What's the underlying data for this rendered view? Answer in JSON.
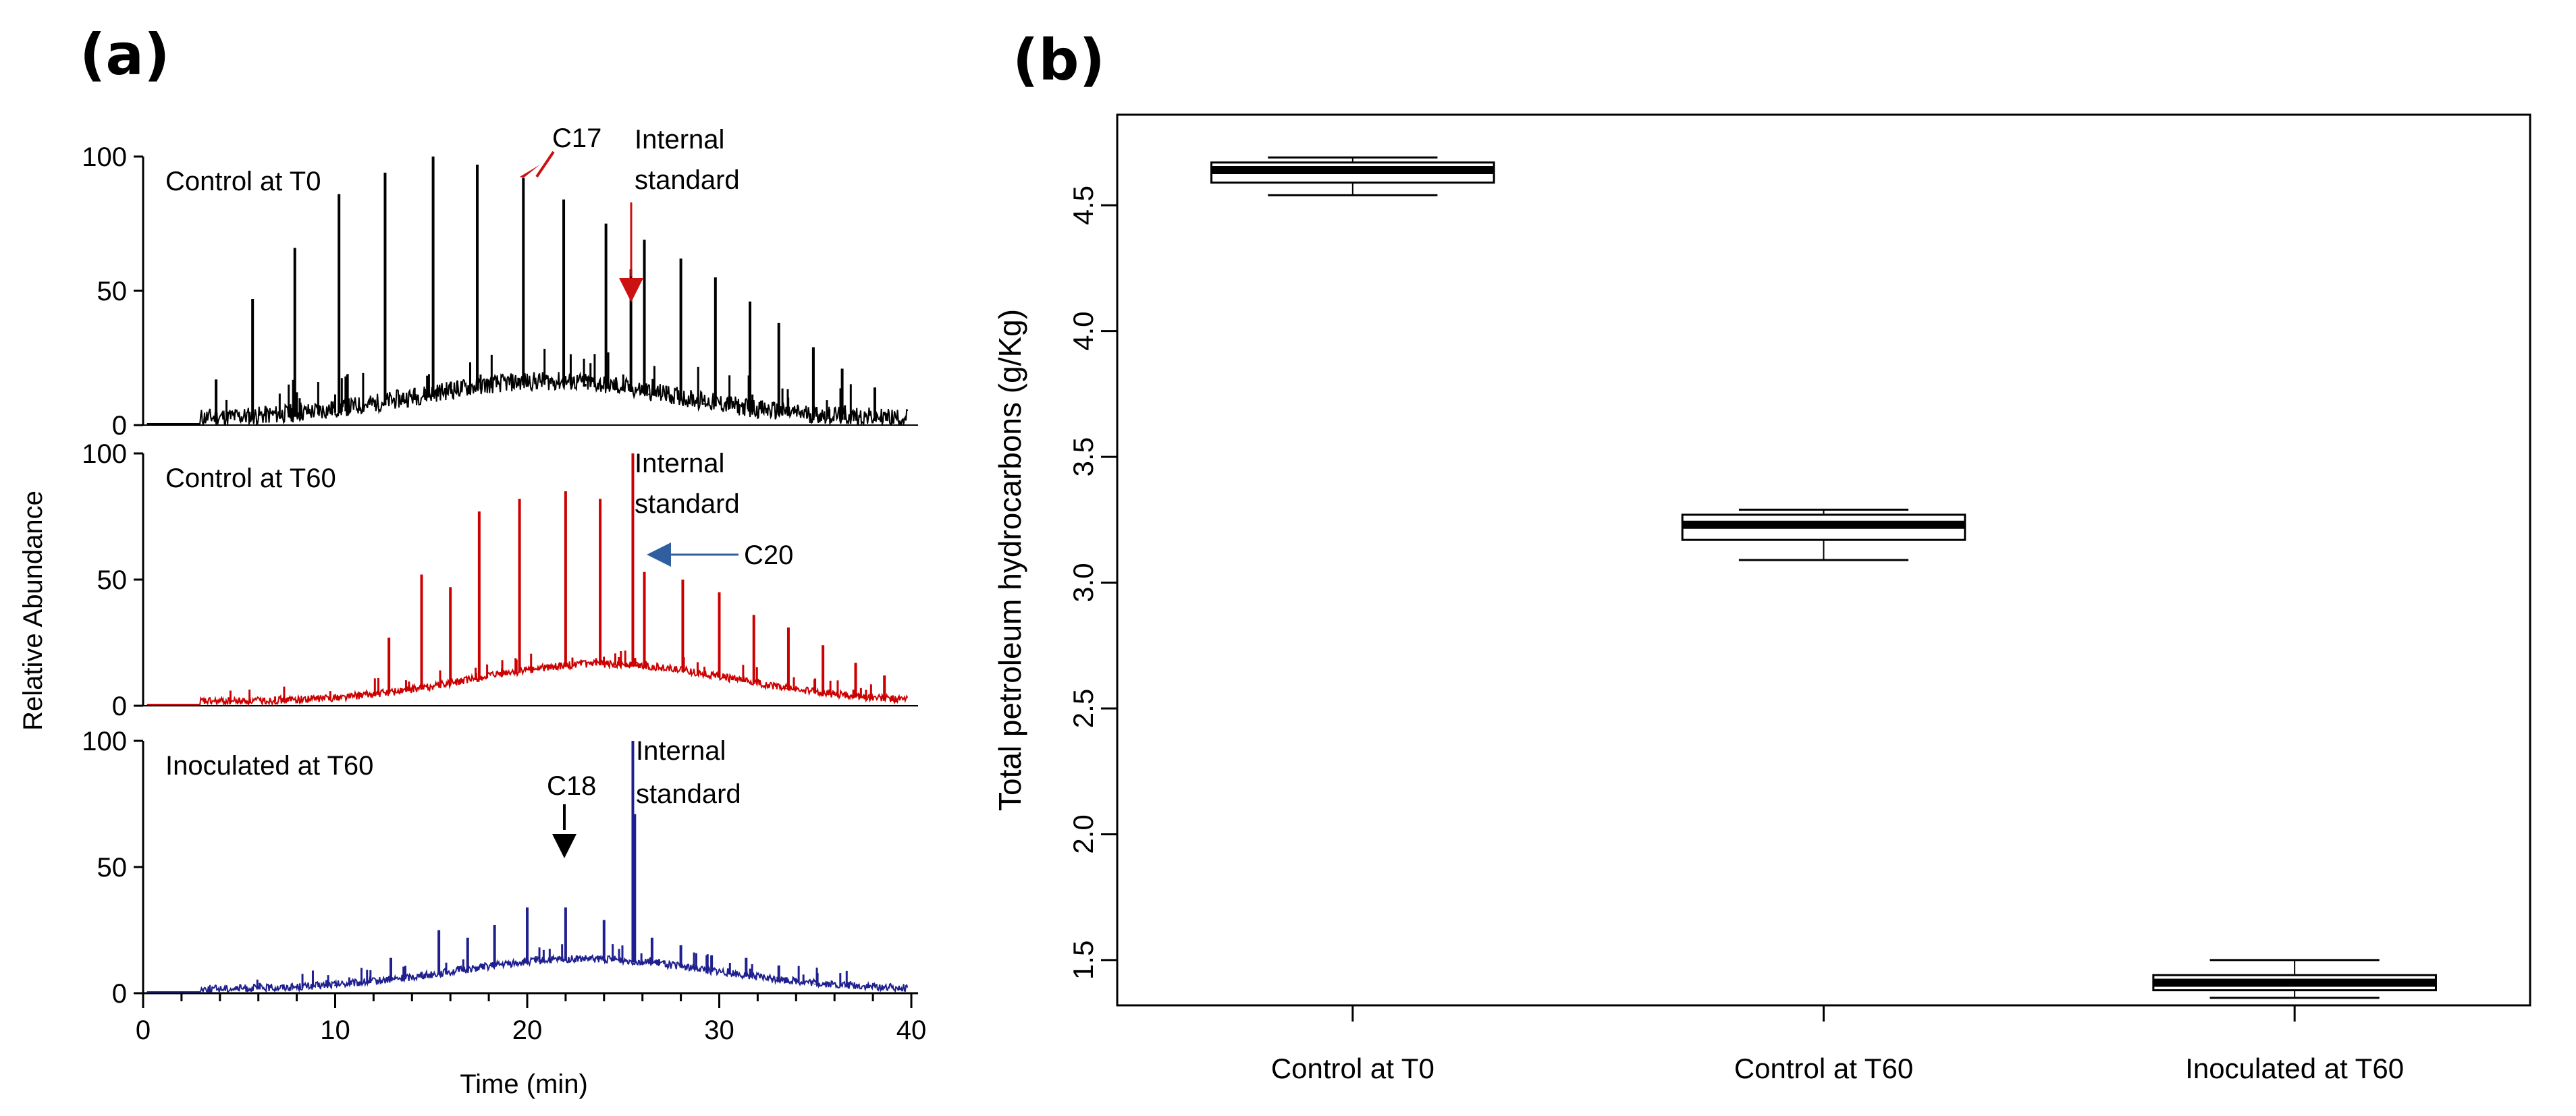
{
  "panels": {
    "a_label": "(a)",
    "b_label": "(b)"
  },
  "chart_data": [
    {
      "type": "line",
      "panel": "(a)",
      "xlabel": "Time (min)",
      "ylabel": "Relative Abundance",
      "x_ticks": [
        "0",
        "10",
        "20",
        "30",
        "40"
      ],
      "y_ticks": [
        "0",
        "50",
        "100"
      ],
      "xlim": [
        0,
        40
      ],
      "ylim": [
        0,
        100
      ],
      "series": [
        {
          "name": "Control at T0",
          "color": "#000000",
          "baseline_start": 3,
          "baseline_peak_time": 21,
          "baseline_peak_height": 14,
          "peaks": [
            [
              3.8,
              17
            ],
            [
              5.7,
              47
            ],
            [
              7.9,
              66
            ],
            [
              10.2,
              86
            ],
            [
              12.6,
              94
            ],
            [
              15.1,
              100
            ],
            [
              17.4,
              97
            ],
            [
              19.8,
              92
            ],
            [
              21.9,
              84
            ],
            [
              24.1,
              75
            ],
            [
              25.4,
              58
            ],
            [
              26.1,
              69
            ],
            [
              28.0,
              62
            ],
            [
              29.8,
              55
            ],
            [
              31.6,
              46
            ],
            [
              33.1,
              38
            ],
            [
              34.9,
              29
            ],
            [
              36.4,
              21
            ],
            [
              38.1,
              14
            ]
          ],
          "annotations": [
            {
              "text": "C17",
              "x": 19.8
            },
            {
              "text_line1": "Internal",
              "text_line2": "standard",
              "x": 25.4
            }
          ]
        },
        {
          "name": "Control at T60",
          "color": "#cc0000",
          "baseline_start": 3,
          "baseline_peak_time": 24,
          "baseline_peak_height": 15,
          "peaks": [
            [
              12.8,
              27
            ],
            [
              14.5,
              52
            ],
            [
              16.0,
              47
            ],
            [
              17.5,
              77
            ],
            [
              19.6,
              82
            ],
            [
              22.0,
              85
            ],
            [
              23.8,
              82
            ],
            [
              25.5,
              100
            ],
            [
              26.1,
              53
            ],
            [
              28.1,
              50
            ],
            [
              30.0,
              45
            ],
            [
              31.8,
              36
            ],
            [
              33.6,
              31
            ],
            [
              35.4,
              24
            ],
            [
              37.1,
              17
            ],
            [
              38.6,
              12
            ]
          ],
          "annotations": [
            {
              "text_line1": "Internal",
              "text_line2": "standard",
              "x": 25.5
            },
            {
              "text": "C20",
              "x": 26.1
            }
          ]
        },
        {
          "name": "Inoculated at T60",
          "color": "#1f1f8f",
          "baseline_start": 3,
          "baseline_peak_time": 23,
          "baseline_peak_height": 12,
          "peaks": [
            [
              12.9,
              14
            ],
            [
              15.4,
              25
            ],
            [
              16.9,
              22
            ],
            [
              18.3,
              27
            ],
            [
              20.0,
              34
            ],
            [
              22.0,
              34
            ],
            [
              24.0,
              29
            ],
            [
              25.5,
              100
            ],
            [
              25.6,
              71
            ],
            [
              26.5,
              22
            ],
            [
              28.0,
              19
            ],
            [
              29.6,
              15
            ],
            [
              31.4,
              14
            ],
            [
              33.1,
              11
            ],
            [
              35.1,
              8
            ]
          ],
          "annotations": [
            {
              "text": "C18",
              "x": 22.0
            },
            {
              "text_line1": "Internal",
              "text_line2": "standard",
              "x": 25.5
            }
          ]
        }
      ]
    },
    {
      "type": "box",
      "panel": "(b)",
      "ylabel": "Total petroleum hydrocarbons (g/Kg)",
      "categories": [
        "Control at T0",
        "Control at T60",
        "Inoculated at T60"
      ],
      "y_ticks": [
        "1.5",
        "2.0",
        "2.5",
        "3.0",
        "3.5",
        "4.0",
        "4.5"
      ],
      "ylim": [
        1.32,
        4.86
      ],
      "boxes": [
        {
          "name": "Control at T0",
          "min": 4.54,
          "q1": 4.59,
          "median": 4.64,
          "q3": 4.67,
          "max": 4.69
        },
        {
          "name": "Control at T60",
          "min": 3.09,
          "q1": 3.17,
          "median": 3.23,
          "q3": 3.27,
          "max": 3.29
        },
        {
          "name": "Inoculated at T60",
          "min": 1.35,
          "q1": 1.38,
          "median": 1.41,
          "q3": 1.44,
          "max": 1.5
        }
      ]
    }
  ]
}
